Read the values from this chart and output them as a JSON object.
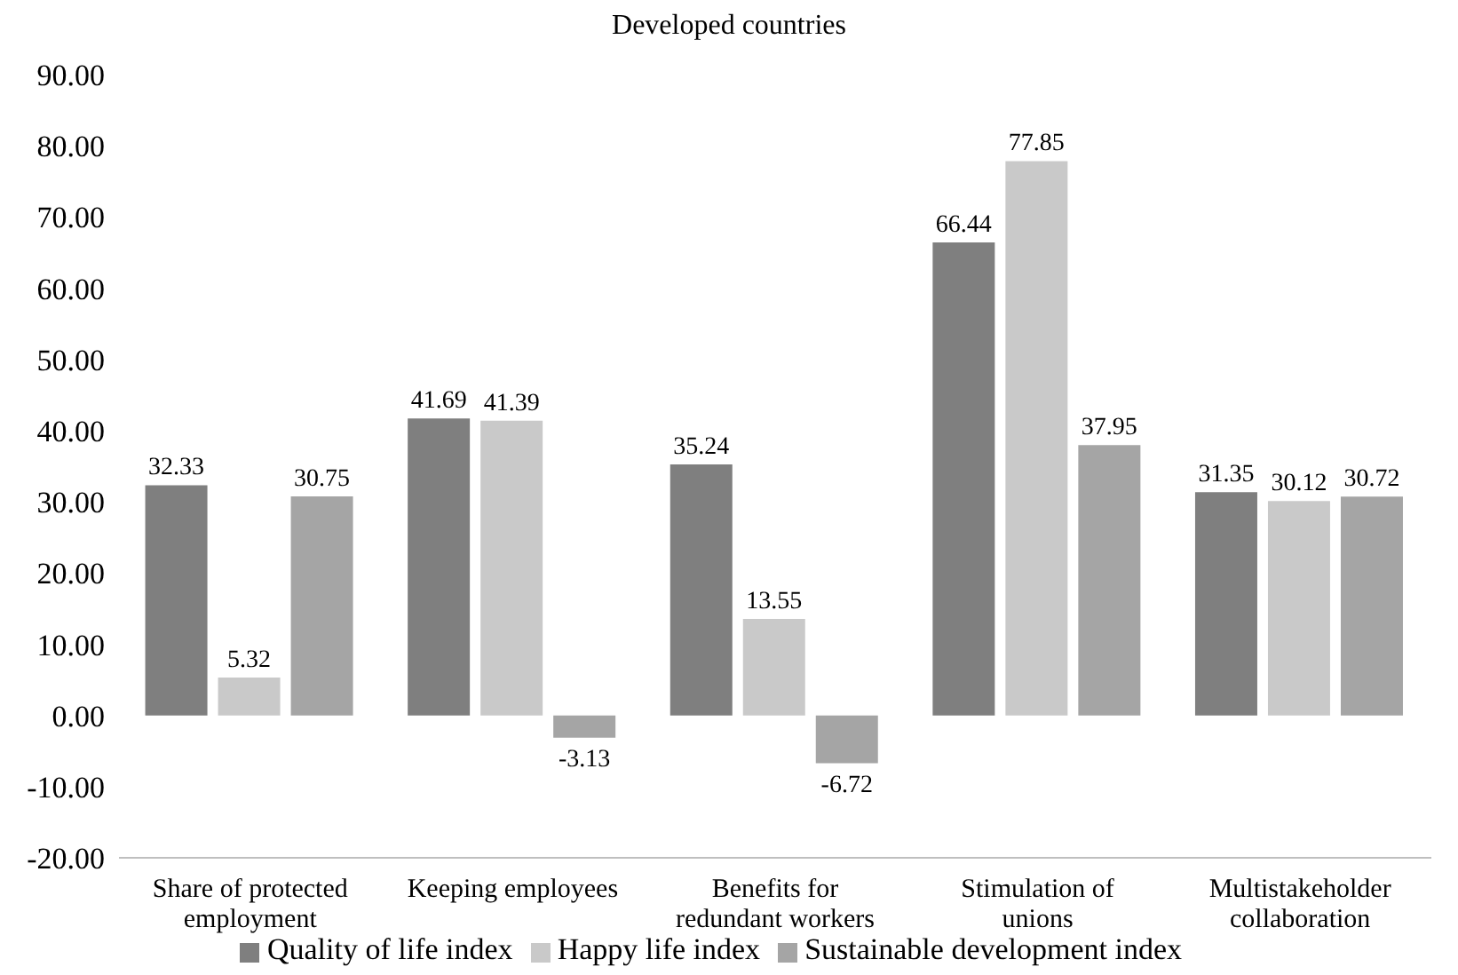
{
  "chart_data": {
    "type": "bar",
    "title": "Developed countries",
    "categories": [
      "Share of protected employment",
      "Keeping employees",
      "Benefits for redundant workers",
      "Stimulation of unions",
      "Multistakeholder collaboration"
    ],
    "series": [
      {
        "name": "Quality of life index",
        "color": "#7f7f7f",
        "values": [
          32.33,
          41.69,
          35.24,
          66.44,
          31.35
        ]
      },
      {
        "name": "Happy life index",
        "color": "#c9c9c9",
        "values": [
          5.32,
          41.39,
          13.55,
          77.85,
          30.12
        ]
      },
      {
        "name": "Sustainable development index",
        "color": "#a5a5a5",
        "values": [
          30.75,
          -3.13,
          -6.72,
          37.95,
          30.72
        ]
      }
    ],
    "ylim": [
      -20,
      90
    ],
    "yticks": [
      {
        "value": -20,
        "label": "-20.00"
      },
      {
        "value": -10,
        "label": "-10.00"
      },
      {
        "value": 0,
        "label": "0.00"
      },
      {
        "value": 10,
        "label": "10.00"
      },
      {
        "value": 20,
        "label": "20.00"
      },
      {
        "value": 30,
        "label": "30.00"
      },
      {
        "value": 40,
        "label": "40.00"
      },
      {
        "value": 50,
        "label": "50.00"
      },
      {
        "value": 60,
        "label": "60.00"
      },
      {
        "value": 70,
        "label": "70.00"
      },
      {
        "value": 80,
        "label": "80.00"
      },
      {
        "value": 90,
        "label": "90.00"
      }
    ],
    "grid": false,
    "legend": "bottom",
    "data_labels": true
  }
}
